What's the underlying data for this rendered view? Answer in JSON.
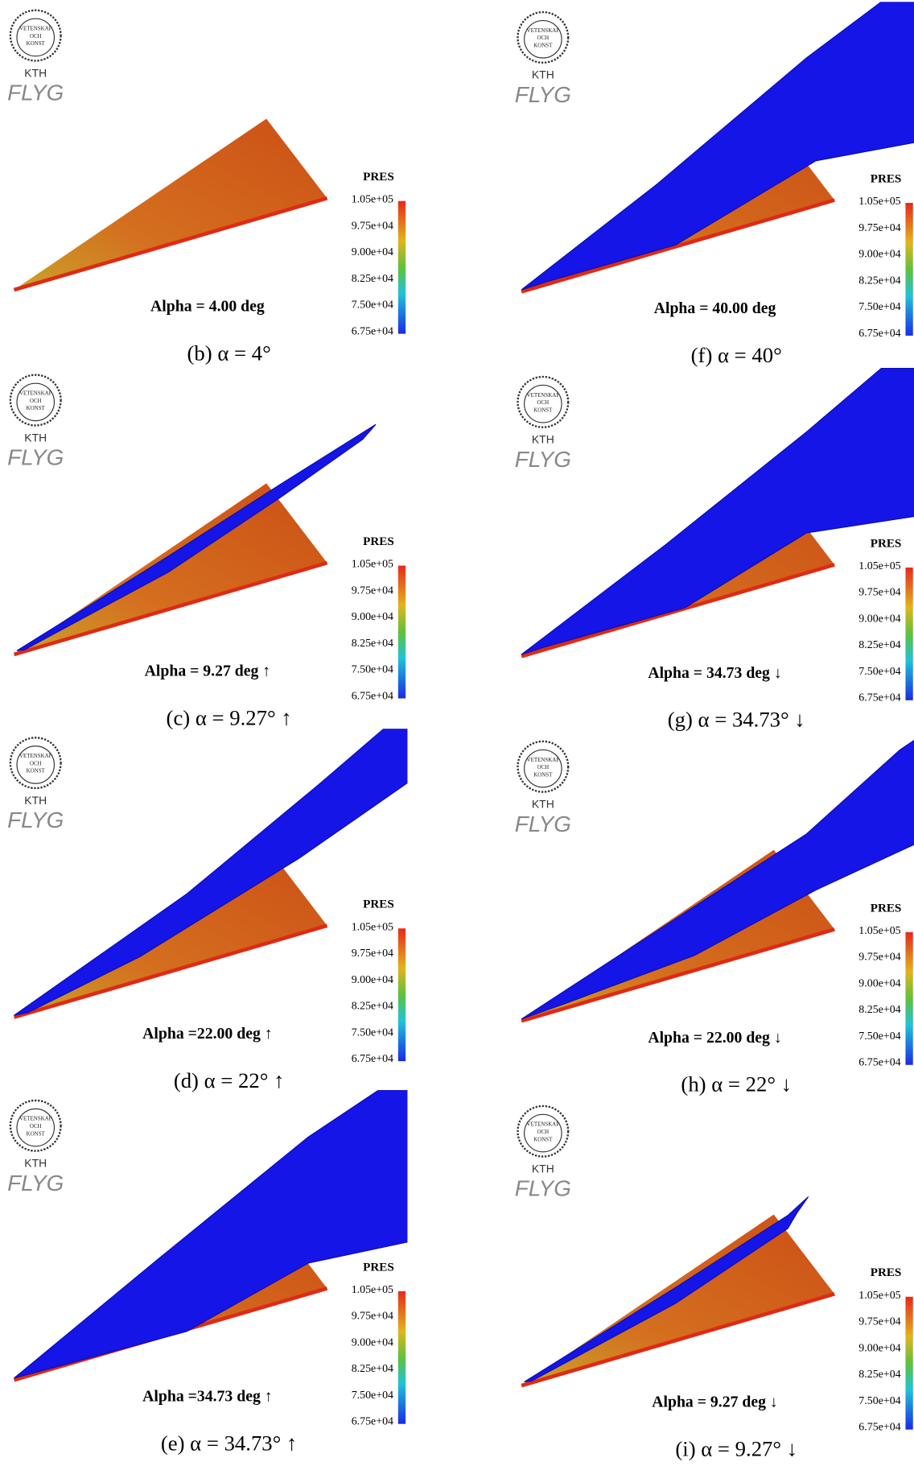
{
  "logo": {
    "motto": [
      "VETENSKAP",
      "OCH",
      "KONST"
    ],
    "name": "KTH",
    "brand": "FLYG"
  },
  "colorbar": {
    "title": "PRES",
    "ticks": [
      "1.05e+05",
      "9.75e+04",
      "9.00e+04",
      "8.25e+04",
      "7.50e+04",
      "6.75e+04"
    ]
  },
  "panels": [
    {
      "annotation": "Alpha = 4.00 deg",
      "caption": "(b)  α = 4°"
    },
    {
      "annotation": "Alpha = 9.27 deg ↑",
      "caption": "(c)  α = 9.27° ↑"
    },
    {
      "annotation": "Alpha =22.00 deg ↑",
      "caption": "(d)  α = 22° ↑"
    },
    {
      "annotation": "Alpha =34.73 deg ↑",
      "caption": "(e)  α = 34.73° ↑"
    },
    {
      "annotation": "Alpha = 40.00 deg",
      "caption": "(f)  α = 40°"
    },
    {
      "annotation": "Alpha = 34.73 deg ↓",
      "caption": "(g)  α = 34.73° ↓"
    },
    {
      "annotation": "Alpha = 22.00 deg ↓",
      "caption": "(h)  α = 22° ↓"
    },
    {
      "annotation": "Alpha = 9.27 deg ↓",
      "caption": "(i)  α = 9.27° ↓"
    }
  ]
}
